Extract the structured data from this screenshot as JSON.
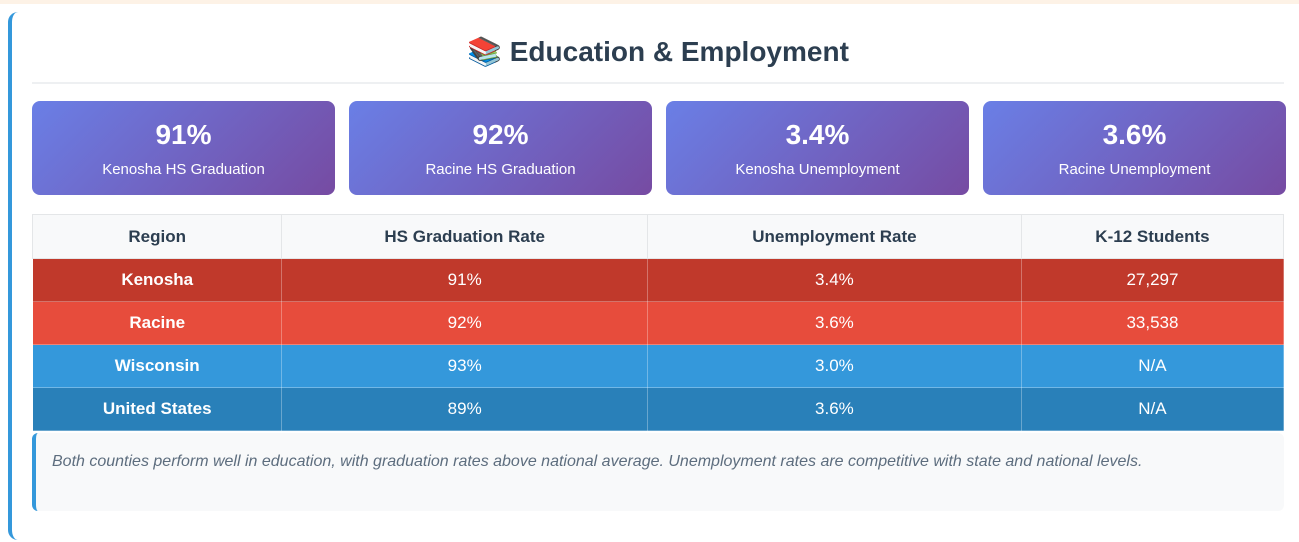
{
  "header": {
    "icon": "📚",
    "title": "Education & Employment"
  },
  "stats": [
    {
      "value": "91%",
      "label": "Kenosha HS Graduation"
    },
    {
      "value": "92%",
      "label": "Racine HS Graduation"
    },
    {
      "value": "3.4%",
      "label": "Kenosha Unemployment"
    },
    {
      "value": "3.6%",
      "label": "Racine Unemployment"
    }
  ],
  "table": {
    "columns": [
      "Region",
      "HS Graduation Rate",
      "Unemployment Rate",
      "K-12 Students"
    ],
    "rows": [
      [
        "Kenosha",
        "91%",
        "3.4%",
        "27,297"
      ],
      [
        "Racine",
        "92%",
        "3.6%",
        "33,538"
      ],
      [
        "Wisconsin",
        "93%",
        "3.0%",
        "N/A"
      ],
      [
        "United States",
        "89%",
        "3.6%",
        "N/A"
      ]
    ]
  },
  "note": "Both counties perform well in education, with graduation rates above national average. Unemployment rates are competitive with state and national levels."
}
